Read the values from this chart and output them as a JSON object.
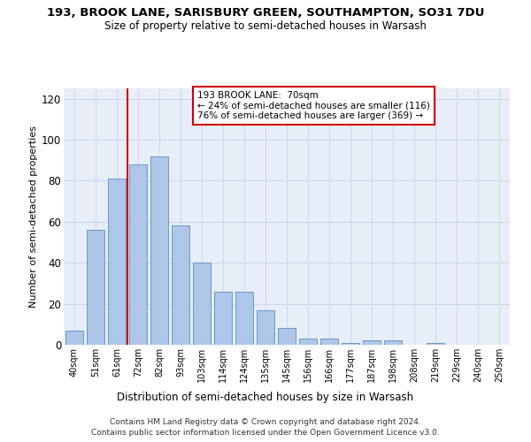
{
  "title": "193, BROOK LANE, SARISBURY GREEN, SOUTHAMPTON, SO31 7DU",
  "subtitle": "Size of property relative to semi-detached houses in Warsash",
  "xlabel": "Distribution of semi-detached houses by size in Warsash",
  "ylabel": "Number of semi-detached properties",
  "categories": [
    "40sqm",
    "51sqm",
    "61sqm",
    "72sqm",
    "82sqm",
    "93sqm",
    "103sqm",
    "114sqm",
    "124sqm",
    "135sqm",
    "145sqm",
    "156sqm",
    "166sqm",
    "177sqm",
    "187sqm",
    "198sqm",
    "208sqm",
    "219sqm",
    "229sqm",
    "240sqm",
    "250sqm"
  ],
  "values": [
    7,
    56,
    81,
    88,
    92,
    58,
    40,
    26,
    26,
    17,
    8,
    3,
    3,
    1,
    2,
    2,
    0,
    1,
    0,
    0,
    0
  ],
  "bar_color": "#aec6e8",
  "bar_edge_color": "#5a8fc2",
  "vline_color": "#cc0000",
  "annotation_lines": [
    "193 BROOK LANE:  70sqm",
    "← 24% of semi-detached houses are smaller (116)",
    "76% of semi-detached houses are larger (369) →"
  ],
  "annotation_box_color": "#ffffff",
  "annotation_box_edge": "#cc0000",
  "footer1": "Contains HM Land Registry data © Crown copyright and database right 2024.",
  "footer2": "Contains public sector information licensed under the Open Government Licence v3.0.",
  "ylim": [
    0,
    125
  ],
  "yticks": [
    0,
    20,
    40,
    60,
    80,
    100,
    120
  ],
  "grid_color": "#d0d8e8",
  "background_color": "#e8eef8"
}
